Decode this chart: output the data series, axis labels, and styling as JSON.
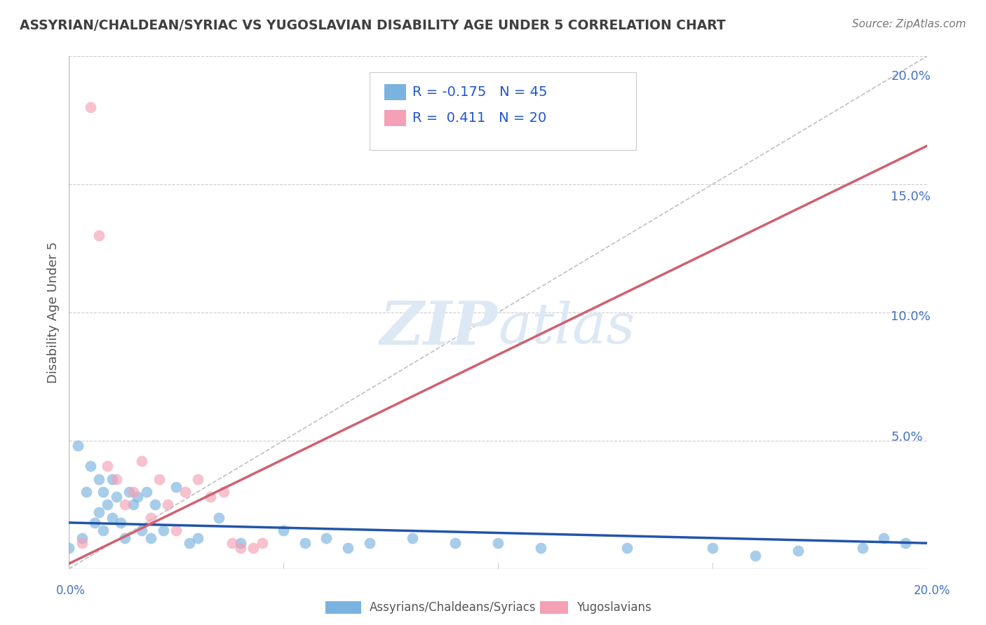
{
  "title": "ASSYRIAN/CHALDEAN/SYRIAC VS YUGOSLAVIAN DISABILITY AGE UNDER 5 CORRELATION CHART",
  "source": "Source: ZipAtlas.com",
  "ylabel": "Disability Age Under 5",
  "xlim": [
    0.0,
    0.2
  ],
  "ylim": [
    0.0,
    0.2
  ],
  "color_blue": "#7ab3e0",
  "color_pink": "#f4a0b5",
  "color_blue_line": "#2255aa",
  "color_pink_line": "#d06070",
  "color_diagonal": "#c0c0c0",
  "watermark_color": "#dde8f5",
  "background_color": "#ffffff",
  "grid_color": "#cccccc",
  "title_color": "#404040",
  "axis_label_color": "#4472c4",
  "blue_x": [
    0.0,
    0.002,
    0.003,
    0.004,
    0.005,
    0.006,
    0.007,
    0.007,
    0.008,
    0.008,
    0.009,
    0.01,
    0.01,
    0.011,
    0.012,
    0.013,
    0.014,
    0.015,
    0.016,
    0.017,
    0.018,
    0.019,
    0.02,
    0.022,
    0.025,
    0.028,
    0.03,
    0.035,
    0.04,
    0.05,
    0.055,
    0.06,
    0.065,
    0.07,
    0.08,
    0.09,
    0.1,
    0.11,
    0.13,
    0.15,
    0.16,
    0.17,
    0.185,
    0.19,
    0.195
  ],
  "blue_y": [
    0.008,
    0.048,
    0.012,
    0.03,
    0.04,
    0.018,
    0.035,
    0.022,
    0.015,
    0.03,
    0.025,
    0.02,
    0.035,
    0.028,
    0.018,
    0.012,
    0.03,
    0.025,
    0.028,
    0.015,
    0.03,
    0.012,
    0.025,
    0.015,
    0.032,
    0.01,
    0.012,
    0.02,
    0.01,
    0.015,
    0.01,
    0.012,
    0.008,
    0.01,
    0.012,
    0.01,
    0.01,
    0.008,
    0.008,
    0.008,
    0.005,
    0.007,
    0.008,
    0.012,
    0.01
  ],
  "pink_x": [
    0.003,
    0.005,
    0.007,
    0.009,
    0.011,
    0.013,
    0.015,
    0.017,
    0.019,
    0.021,
    0.023,
    0.025,
    0.027,
    0.03,
    0.033,
    0.036,
    0.038,
    0.04,
    0.043,
    0.045
  ],
  "pink_y": [
    0.01,
    0.18,
    0.13,
    0.04,
    0.035,
    0.025,
    0.03,
    0.042,
    0.02,
    0.035,
    0.025,
    0.015,
    0.03,
    0.035,
    0.028,
    0.03,
    0.01,
    0.008,
    0.008,
    0.01
  ],
  "blue_line_x0": 0.0,
  "blue_line_x1": 0.2,
  "blue_line_y0": 0.018,
  "blue_line_y1": 0.01,
  "pink_line_x0": 0.0,
  "pink_line_x1": 0.2,
  "pink_line_y0": 0.002,
  "pink_line_y1": 0.165
}
